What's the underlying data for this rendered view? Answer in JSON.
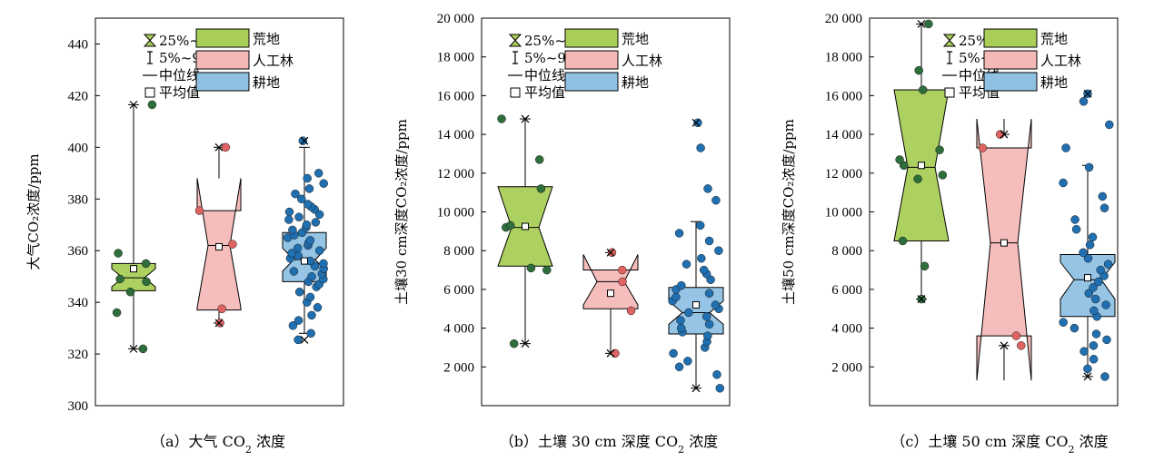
{
  "colors": {
    "wasteland": "#a9cf59",
    "plantation": "#f4b9b7",
    "farmland": "#8fc1e3",
    "dot_wasteland": "#2e6e3a",
    "dot_plantation": "#e06363",
    "dot_farmland": "#1f6fb1"
  },
  "legend": {
    "iqr": "25%~75%",
    "range": "5%~95%",
    "median": "中位线",
    "mean": "平均值",
    "groups": [
      "荒地",
      "人工林",
      "耕地"
    ]
  },
  "chart_data": [
    {
      "type": "box",
      "caption": "（a）大气 CO",
      "caption_sub": "2",
      "caption_tail": " 浓度",
      "ylabel": "大气CO₂浓度/ppm",
      "ylim": [
        300,
        450
      ],
      "yticks": [
        "300",
        "320",
        "340",
        "360",
        "380",
        "400",
        "420",
        "440"
      ],
      "ytick_values": [
        300,
        320,
        340,
        360,
        380,
        400,
        420,
        440
      ],
      "series": [
        {
          "name": "荒地",
          "q1": 344.5,
          "median": 349.5,
          "q3": 355,
          "notch_lo": 346,
          "notch_hi": 353,
          "p5": 322,
          "p95": 416.5,
          "mean": 353,
          "min": 322,
          "max": 416.5,
          "points": [
            322,
            336,
            344,
            348,
            349,
            355,
            359,
            416.5
          ]
        },
        {
          "name": "人工林",
          "q1": 337,
          "median": 362,
          "q3": 375.5,
          "notch_lo": 338,
          "notch_hi": 388,
          "p5": 332,
          "p95": 400,
          "mean": 361.5,
          "min": 332,
          "max": 400,
          "points": [
            332,
            337.5,
            362.5,
            375.5,
            400
          ]
        },
        {
          "name": "耕地",
          "q1": 348,
          "median": 356.5,
          "q3": 367,
          "notch_lo": 352,
          "notch_hi": 361,
          "p5": 328,
          "p95": 400,
          "mean": 356,
          "min": 325.5,
          "max": 402.5,
          "points": [
            325.5,
            328,
            331,
            333,
            335,
            338,
            340,
            342,
            344,
            346,
            347,
            348,
            349,
            350,
            351,
            352,
            353,
            354,
            355,
            356,
            357,
            358,
            359,
            360,
            361,
            362,
            363,
            364,
            365,
            366,
            367,
            368,
            369,
            370,
            371,
            372,
            373,
            374,
            375,
            376,
            377,
            378,
            380,
            382,
            384,
            386,
            388,
            390,
            402.5
          ]
        }
      ]
    },
    {
      "type": "box",
      "caption": "（b）土壤 30 cm 深度 CO",
      "caption_sub": "2",
      "caption_tail": " 浓度",
      "ylabel": "土壤30 cm深度CO₂浓度/ppm",
      "ylim": [
        0,
        20000
      ],
      "yticks": [
        "2 000",
        "4 000",
        "6 000",
        "8 000",
        "10 000",
        "12 000",
        "14 000",
        "16 000",
        "18 000",
        "20 000"
      ],
      "ytick_values": [
        2000,
        4000,
        6000,
        8000,
        10000,
        12000,
        14000,
        16000,
        18000,
        20000
      ],
      "series": [
        {
          "name": "荒地",
          "q1": 7200,
          "median": 9200,
          "q3": 11300,
          "notch_lo": 7200,
          "notch_hi": 11300,
          "p5": 3200,
          "p95": 14800,
          "mean": 9250,
          "min": 3200,
          "max": 14800,
          "points": [
            3200,
            7000,
            7100,
            9200,
            9300,
            11200,
            12700,
            14800
          ]
        },
        {
          "name": "人工林",
          "q1": 5000,
          "median": 6400,
          "q3": 7000,
          "notch_lo": 5200,
          "notch_hi": 7800,
          "p5": 2700,
          "p95": 7900,
          "mean": 5800,
          "min": 2700,
          "max": 7900,
          "points": [
            2700,
            4900,
            6400,
            7000,
            7900
          ]
        },
        {
          "name": "耕地",
          "q1": 3700,
          "median": 4800,
          "q3": 6100,
          "notch_lo": 4200,
          "notch_hi": 5400,
          "p5": 900,
          "p95": 9500,
          "mean": 5200,
          "min": 900,
          "max": 14600,
          "points": [
            900,
            1600,
            2000,
            2300,
            2700,
            3000,
            3300,
            3600,
            3800,
            4000,
            4200,
            4400,
            4600,
            4800,
            5000,
            5200,
            5400,
            5600,
            5800,
            6000,
            6200,
            6500,
            6800,
            7000,
            7300,
            7600,
            8000,
            8500,
            8900,
            9300,
            10600,
            11200,
            13300,
            14600
          ]
        }
      ]
    },
    {
      "type": "box",
      "caption": "（c）土壤 50 cm 深度 CO",
      "caption_sub": "2",
      "caption_tail": " 浓度",
      "ylabel": "土壤50 cm深度CO₂浓度/ppm",
      "ylim": [
        0,
        20000
      ],
      "yticks": [
        "2 000",
        "4 000",
        "6 000",
        "8 000",
        "10 000",
        "12 000",
        "14 000",
        "16 000",
        "18 000",
        "20 000"
      ],
      "ytick_values": [
        2000,
        4000,
        6000,
        8000,
        10000,
        12000,
        14000,
        16000,
        18000,
        20000
      ],
      "series": [
        {
          "name": "荒地",
          "q1": 8500,
          "median": 12300,
          "q3": 16300,
          "notch_lo": 8500,
          "notch_hi": 16300,
          "p5": 5500,
          "p95": 19700,
          "mean": 12400,
          "min": 5500,
          "max": 19700,
          "points": [
            5500,
            7200,
            8500,
            11700,
            11900,
            12400,
            12700,
            13200,
            16300,
            17300,
            19700
          ]
        },
        {
          "name": "人工林",
          "q1": 3600,
          "median": 8400,
          "q3": 13300,
          "notch_lo": 1300,
          "notch_hi": 14800,
          "p5": 3100,
          "p95": 14000,
          "mean": 8400,
          "min": 3100,
          "max": 14000,
          "points": [
            3100,
            3600,
            13300,
            14000
          ]
        },
        {
          "name": "耕地",
          "q1": 4600,
          "median": 6500,
          "q3": 7800,
          "notch_lo": 5500,
          "notch_hi": 7400,
          "p5": 1500,
          "p95": 12400,
          "mean": 6600,
          "min": 1500,
          "max": 16100,
          "points": [
            1500,
            1900,
            2400,
            2800,
            3100,
            3400,
            3700,
            4000,
            4300,
            4600,
            4900,
            5200,
            5500,
            5800,
            6100,
            6400,
            6700,
            7000,
            7300,
            7600,
            7900,
            8300,
            8700,
            9100,
            9600,
            10200,
            10800,
            11500,
            12300,
            13300,
            14500,
            15700,
            16100
          ]
        }
      ]
    }
  ]
}
